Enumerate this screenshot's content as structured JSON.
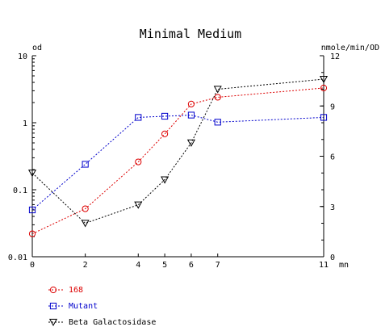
{
  "chart_data": {
    "type": "line",
    "title": "Minimal Medium",
    "x": [
      0,
      2,
      4,
      5,
      6,
      7,
      11
    ],
    "xlim": [
      0,
      11
    ],
    "x_ticks": [
      "0",
      "2",
      "4",
      "5",
      "6",
      "7",
      "11"
    ],
    "xunit": "mn",
    "left_axis": {
      "label": "od",
      "scale": "log",
      "ylim": [
        0.01,
        10
      ],
      "ticks": [
        {
          "value": 10,
          "label": "10"
        },
        {
          "value": 1,
          "label": "1"
        },
        {
          "value": 0.1,
          "label": "0.1"
        },
        {
          "value": 0.01,
          "label": "0.01"
        }
      ]
    },
    "right_axis": {
      "label": "nmole/min/OD",
      "scale": "linear",
      "ylim": [
        0,
        12
      ],
      "ticks": [
        {
          "value": 12,
          "label": "12"
        },
        {
          "value": 9,
          "label": "9"
        },
        {
          "value": 6,
          "label": "6"
        },
        {
          "value": 3,
          "label": "3"
        },
        {
          "value": 0,
          "label": "0"
        }
      ]
    },
    "series": [
      {
        "name": "168",
        "axis": "left",
        "marker": "circle",
        "color": "#dd0000",
        "x": [
          0,
          2,
          4,
          5,
          6,
          7,
          11
        ],
        "values": [
          0.022,
          0.052,
          0.26,
          0.68,
          1.9,
          2.4,
          3.3
        ]
      },
      {
        "name": "Mutant",
        "axis": "left",
        "marker": "square",
        "color": "#0000cc",
        "x": [
          0,
          2,
          4,
          5,
          6,
          7,
          11
        ],
        "values": [
          0.05,
          0.24,
          1.2,
          1.25,
          1.3,
          1.02,
          1.2
        ]
      },
      {
        "name": "Beta Galactosidase",
        "axis": "right",
        "marker": "triangle-down",
        "color": "#000000",
        "x": [
          0,
          2,
          4,
          5,
          6,
          7,
          11
        ],
        "values": [
          5,
          2,
          3.1,
          4.6,
          6.8,
          10,
          10.6
        ]
      }
    ],
    "grid": false,
    "legend_position": "bottom-left"
  }
}
